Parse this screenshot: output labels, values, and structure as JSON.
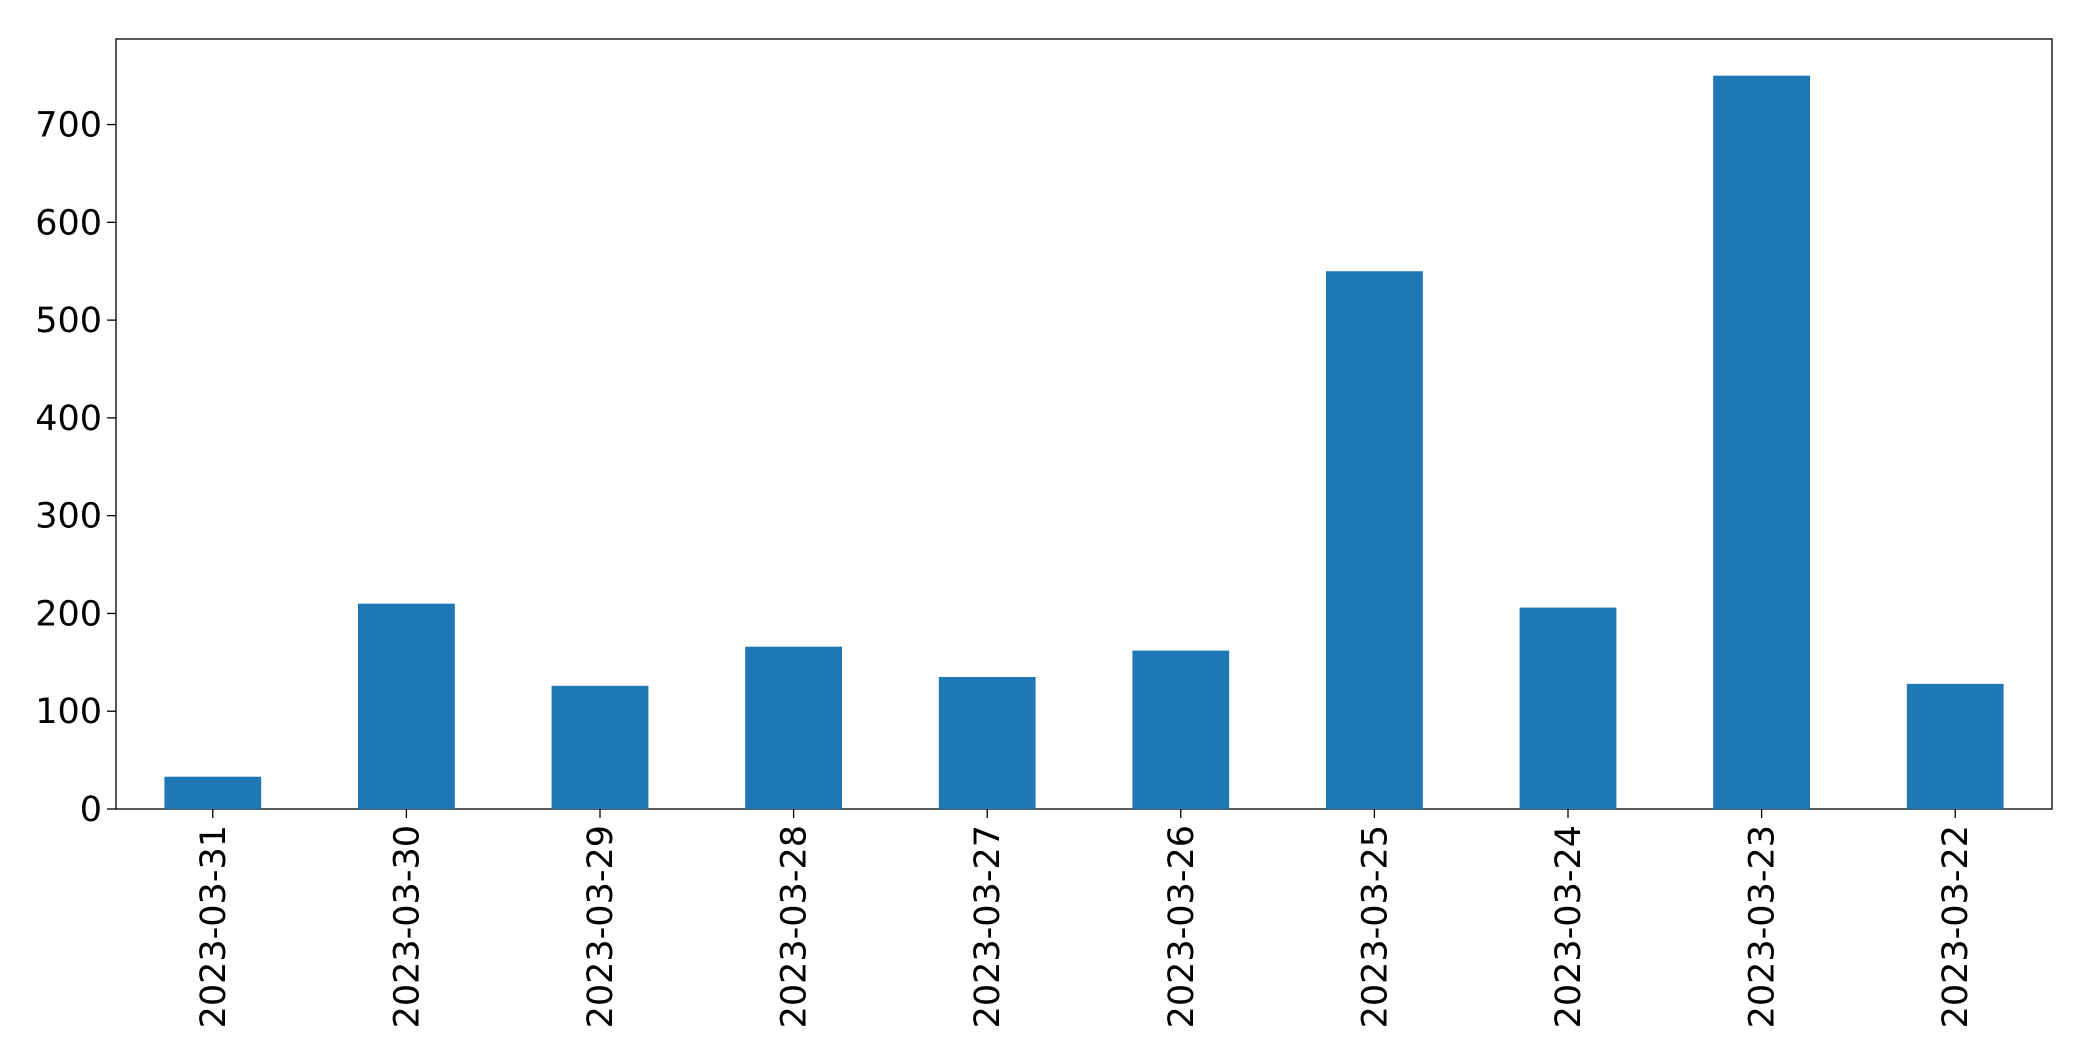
{
  "chart_data": {
    "type": "bar",
    "categories": [
      "2023-03-31",
      "2023-03-30",
      "2023-03-29",
      "2023-03-28",
      "2023-03-27",
      "2023-03-26",
      "2023-03-25",
      "2023-03-24",
      "2023-03-23",
      "2023-03-22"
    ],
    "values": [
      33,
      210,
      126,
      166,
      135,
      162,
      550,
      206,
      750,
      128
    ],
    "color": "#1f77b4",
    "ylim": [
      0,
      787.5
    ],
    "yticks": [
      0,
      100,
      200,
      300,
      400,
      500,
      600,
      700
    ],
    "grid": false
  }
}
